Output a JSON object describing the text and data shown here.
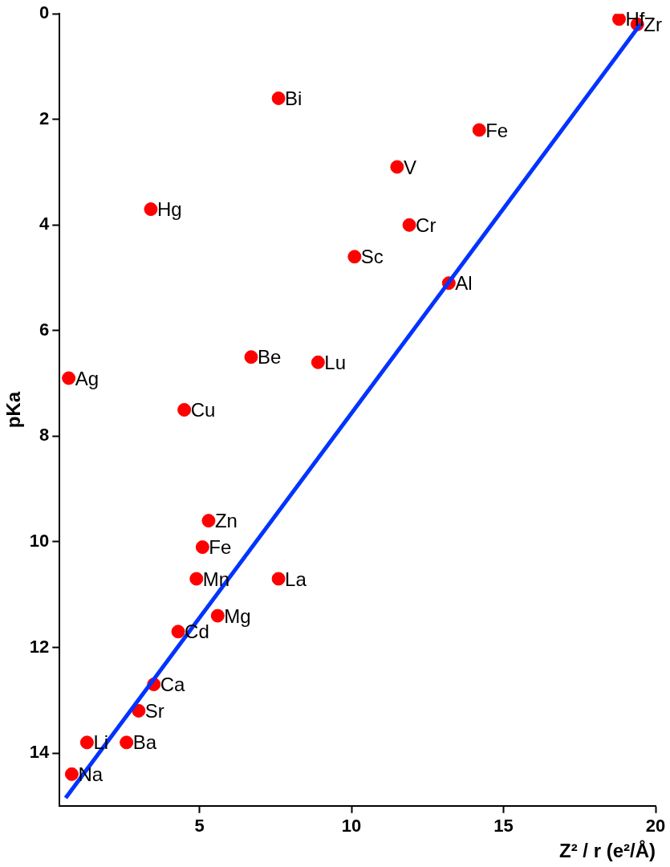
{
  "chart_data": {
    "type": "scatter",
    "xlabel": "Z² / r (e²/Å)",
    "ylabel": "pKa",
    "xlim": [
      0.4,
      20
    ],
    "xticks": [
      5,
      10,
      15,
      20
    ],
    "ylim": [
      15,
      0
    ],
    "yticks": [
      0,
      2,
      4,
      6,
      8,
      10,
      12,
      14
    ],
    "grid": false,
    "legend": false,
    "marker": "circle",
    "series": [
      {
        "color": "#ff0000",
        "x": [
          18.8,
          19.4,
          7.6,
          14.2,
          11.5,
          3.4,
          11.9,
          10.1,
          13.2,
          6.7,
          8.9,
          0.7,
          4.5,
          5.3,
          5.1,
          4.9,
          7.6,
          5.6,
          4.3,
          3.5,
          3.0,
          1.3,
          2.6,
          0.8
        ],
        "values": [
          0.1,
          0.2,
          1.6,
          2.2,
          2.9,
          3.7,
          4.0,
          4.6,
          5.1,
          6.5,
          6.6,
          6.9,
          7.5,
          9.6,
          10.1,
          10.7,
          10.7,
          11.4,
          11.7,
          12.7,
          13.2,
          13.8,
          13.8,
          14.4
        ]
      },
      {
        "type": "line",
        "color": "#0033ff",
        "marker": "none",
        "x": [
          0.6,
          19.5
        ],
        "values": [
          14.85,
          0.2
        ]
      }
    ],
    "annotations": [
      {
        "text": "Hf",
        "x": 18.8,
        "y": 0.1
      },
      {
        "text": "Zr",
        "x": 19.4,
        "y": 0.2
      },
      {
        "text": "Bi",
        "x": 7.6,
        "y": 1.6
      },
      {
        "text": "Fe",
        "x": 14.2,
        "y": 2.2
      },
      {
        "text": "V",
        "x": 11.5,
        "y": 2.9
      },
      {
        "text": "Hg",
        "x": 3.4,
        "y": 3.7
      },
      {
        "text": "Cr",
        "x": 11.9,
        "y": 4.0
      },
      {
        "text": "Sc",
        "x": 10.1,
        "y": 4.6
      },
      {
        "text": "Al",
        "x": 13.2,
        "y": 5.1
      },
      {
        "text": "Be",
        "x": 6.7,
        "y": 6.5
      },
      {
        "text": "Lu",
        "x": 8.9,
        "y": 6.6
      },
      {
        "text": "Ag",
        "x": 0.7,
        "y": 6.9
      },
      {
        "text": "Cu",
        "x": 4.5,
        "y": 7.5
      },
      {
        "text": "Zn",
        "x": 5.3,
        "y": 9.6
      },
      {
        "text": "Fe",
        "x": 5.1,
        "y": 10.1
      },
      {
        "text": "Mn",
        "x": 4.9,
        "y": 10.7
      },
      {
        "text": "La",
        "x": 7.6,
        "y": 10.7
      },
      {
        "text": "Mg",
        "x": 5.6,
        "y": 11.4
      },
      {
        "text": "Cd",
        "x": 4.3,
        "y": 11.7
      },
      {
        "text": "Ca",
        "x": 3.5,
        "y": 12.7
      },
      {
        "text": "Sr",
        "x": 3.0,
        "y": 13.2
      },
      {
        "text": "Li",
        "x": 1.3,
        "y": 13.8
      },
      {
        "text": "Ba",
        "x": 2.6,
        "y": 13.8
      },
      {
        "text": "Na",
        "x": 0.8,
        "y": 14.4
      }
    ]
  }
}
